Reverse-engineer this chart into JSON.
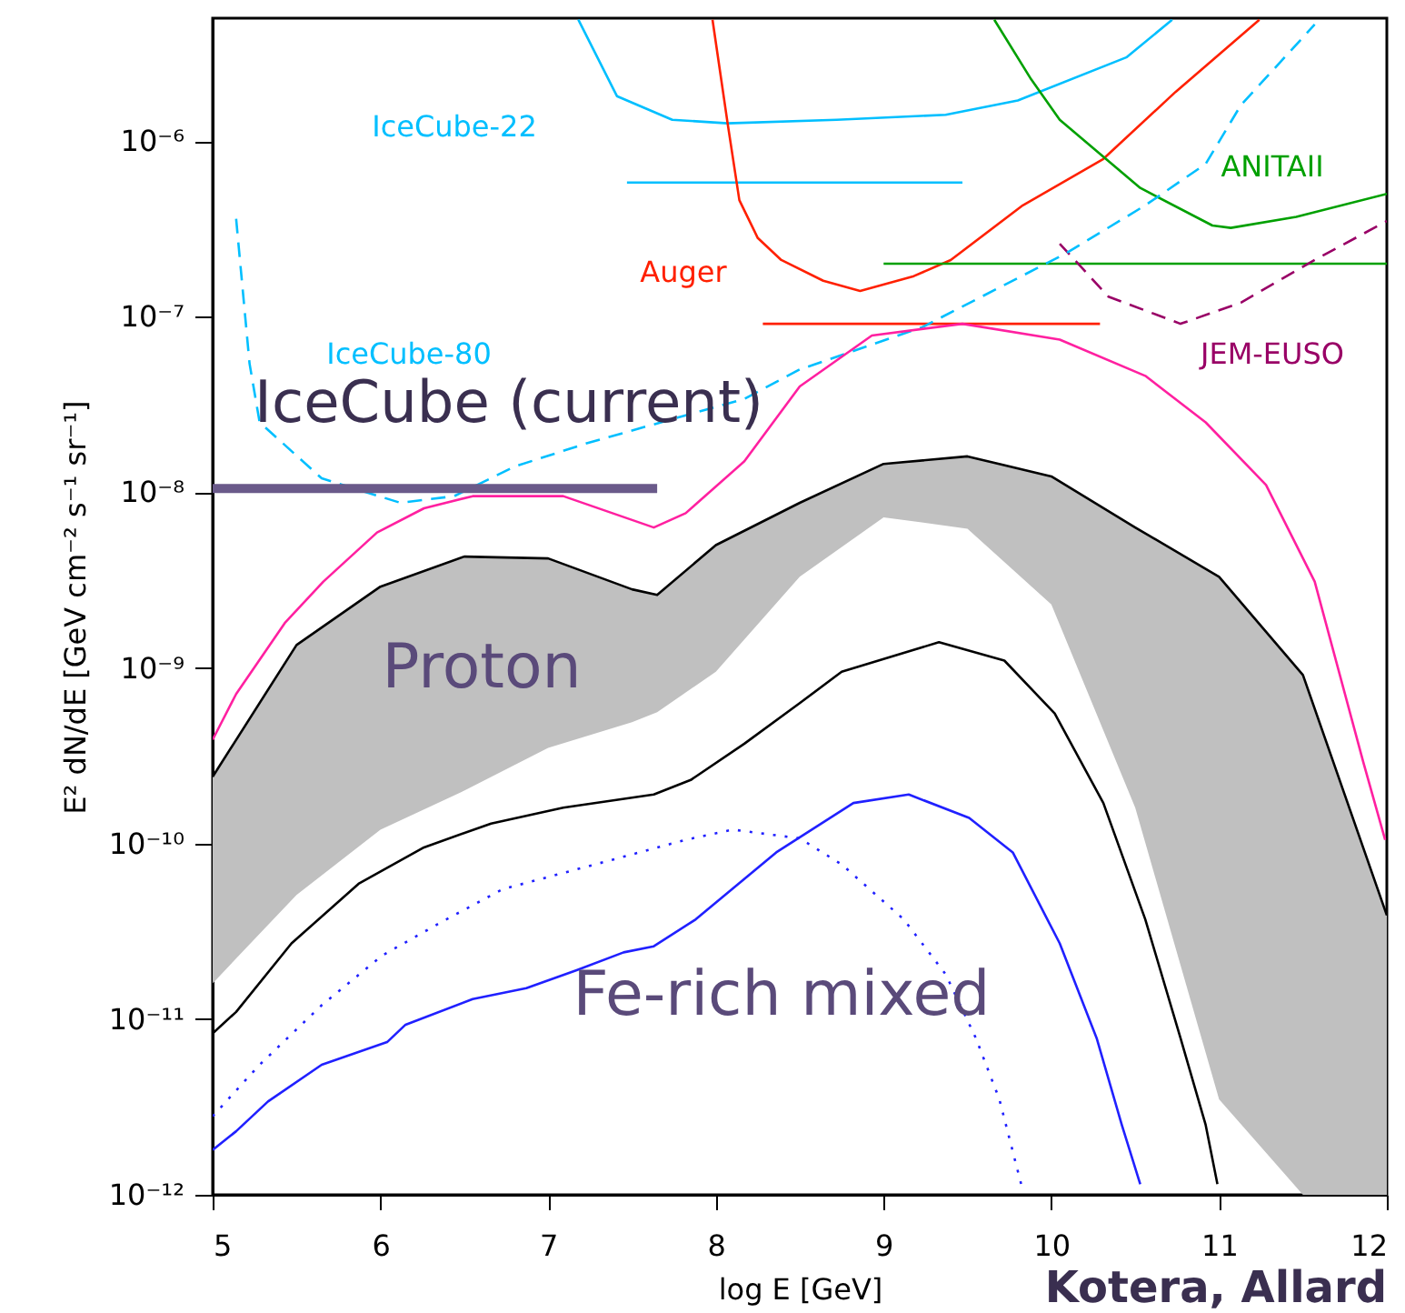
{
  "chart_data": {
    "type": "line",
    "xlabel": "log E [GeV]",
    "ylabel": "E² dN/dE [GeV cm⁻² s⁻¹ sr⁻¹]",
    "log": true,
    "grid": false,
    "xlim": [
      5,
      12
    ],
    "xticks": [
      5,
      6,
      7,
      8,
      9,
      10,
      11,
      12
    ],
    "ylim": [
      1e-12,
      5e-06
    ],
    "yticks": [
      {
        "value": 1e-12,
        "label": "10⁻¹²"
      },
      {
        "value": 1e-11,
        "label": "10⁻¹¹"
      },
      {
        "value": 1e-10,
        "label": "10⁻¹⁰"
      },
      {
        "value": 1e-09,
        "label": "10⁻⁹"
      },
      {
        "value": 1e-08,
        "label": "10⁻⁸"
      },
      {
        "value": 1e-07,
        "label": "10⁻⁷"
      },
      {
        "value": 1e-06,
        "label": "10⁻⁶"
      }
    ],
    "series": [
      {
        "color": "#000000",
        "x": [
          5.0,
          5.5,
          6.0,
          6.5,
          7.0,
          7.5,
          7.65,
          8.0,
          8.5,
          9.0,
          9.5,
          10.0,
          10.5,
          11.0,
          11.5,
          12.0
        ],
        "values": [
          2.4e-10,
          1.35e-09,
          2.9e-09,
          4.3e-09,
          4.2e-09,
          2.8e-09,
          2.6e-09,
          5e-09,
          8.7e-09,
          1.45e-08,
          1.6e-08,
          1.23e-08,
          6.3e-09,
          3.3e-09,
          9.1e-10,
          3.9e-11
        ],
        "upper": [
          2.4e-10,
          1.35e-09,
          2.9e-09,
          4.3e-09,
          4.2e-09,
          2.8e-09,
          2.6e-09,
          5e-09,
          8.7e-09,
          1.45e-08,
          1.6e-08,
          1.23e-08,
          6.3e-09,
          3.3e-09,
          9.1e-10,
          3.9e-11
        ],
        "lower": [
          1.6e-11,
          5.1e-11,
          1.2e-10,
          2e-10,
          3.5e-10,
          4.9e-10,
          5.6e-10,
          9.5e-10,
          3.3e-09,
          7.2e-09,
          6.2e-09,
          2.3e-09,
          1.6e-10,
          3.5e-12,
          1e-12,
          1e-12
        ]
      },
      {
        "name": "IceCube-22",
        "color": "#00bfff",
        "line_style": "solid",
        "x": [
          7.18,
          7.41,
          7.74,
          8.07,
          8.72,
          9.37,
          9.8,
          10.45,
          10.72
        ],
        "values": [
          4.9e-06,
          1.8e-06,
          1.32e-06,
          1.26e-06,
          1.32e-06,
          1.41e-06,
          1.7e-06,
          3e-06,
          4.9e-06
        ]
      },
      {
        "color": "#00bfff",
        "line_style": "solid",
        "x": [
          7.47,
          9.47
        ],
        "values": [
          5.8e-07,
          5.8e-07
        ]
      },
      {
        "name": "Auger",
        "color": "#ff2000",
        "line_style": "solid",
        "x": [
          7.98,
          8.07,
          8.14,
          8.25,
          8.39,
          8.64,
          8.86,
          9.18,
          9.4,
          9.83,
          10.31,
          10.74,
          11.24
        ],
        "values": [
          4.9e-06,
          1.26e-06,
          4.6e-07,
          2.8e-07,
          2.1e-07,
          1.6e-07,
          1.4e-07,
          1.7e-07,
          2.1e-07,
          4.3e-07,
          7.9e-07,
          1.9e-06,
          4.9e-06
        ]
      },
      {
        "color": "#ff2000",
        "line_style": "solid",
        "x": [
          8.28,
          10.29
        ],
        "values": [
          9.1e-08,
          9.1e-08
        ]
      },
      {
        "name": "ANITAII",
        "color": "#00a000",
        "line_style": "solid",
        "x": [
          9.66,
          9.88,
          10.05,
          10.53,
          10.96,
          11.07,
          11.46,
          12.0
        ],
        "values": [
          4.9e-06,
          2.24e-06,
          1.32e-06,
          5.4e-07,
          3.3e-07,
          3.2e-07,
          3.7e-07,
          5e-07
        ]
      },
      {
        "color": "#00a000",
        "line_style": "solid",
        "x": [
          9.0,
          12.0
        ],
        "values": [
          2e-07,
          2e-07
        ]
      },
      {
        "name": "JEM-EUSO",
        "color": "#990066",
        "line_style": "dashed",
        "x": [
          10.05,
          10.34,
          10.77,
          11.13,
          11.57,
          12.0
        ],
        "values": [
          2.6e-07,
          1.3e-07,
          9.1e-08,
          1.2e-07,
          2.1e-07,
          3.5e-07
        ]
      },
      {
        "name": "IceCube-80",
        "color": "#00bfff",
        "line_style": "dashed",
        "x": [
          5.14,
          5.22,
          5.28,
          5.65,
          6.12,
          6.44,
          6.8,
          7.23,
          8.17,
          8.5,
          9.23,
          10.09,
          10.56,
          10.92,
          11.13,
          11.57
        ],
        "values": [
          3.6e-07,
          5.4e-08,
          2.5e-08,
          1.2e-08,
          8.7e-09,
          9.5e-09,
          1.4e-08,
          1.9e-08,
          3.4e-08,
          5e-08,
          8.7e-08,
          2.3e-07,
          4.3e-07,
          7.4e-07,
          1.6e-06,
          4.6e-06
        ]
      },
      {
        "color": "#6a5a8a",
        "line_style": "solid",
        "x": [
          5.0,
          7.65
        ],
        "values": [
          1.05e-08,
          1.05e-08
        ]
      },
      {
        "color": "#ff20a0",
        "line_style": "solid",
        "x": [
          5.0,
          5.14,
          5.43,
          5.66,
          5.98,
          6.26,
          6.55,
          7.09,
          7.63,
          7.82,
          8.17,
          8.5,
          8.93,
          9.47,
          10.05,
          10.56,
          10.92,
          11.28,
          11.57,
          11.86,
          11.99
        ],
        "values": [
          3.9e-10,
          7.1e-10,
          1.8e-09,
          3.1e-09,
          5.9e-09,
          8.1e-09,
          9.5e-09,
          9.5e-09,
          6.3e-09,
          7.6e-09,
          1.5e-08,
          4e-08,
          7.8e-08,
          9.1e-08,
          7.4e-08,
          4.6e-08,
          2.5e-08,
          1.1e-08,
          3.1e-09,
          2.9e-10,
          1.05e-10
        ]
      },
      {
        "color": "#000000",
        "line_style": "solid",
        "x": [
          5.0,
          5.14,
          5.47,
          5.87,
          6.26,
          6.66,
          7.09,
          7.63,
          7.85,
          8.17,
          8.5,
          8.75,
          9.33,
          9.72,
          10.02,
          10.31,
          10.56,
          10.77,
          10.92,
          10.99
        ],
        "values": [
          8.3e-12,
          1.1e-11,
          2.7e-11,
          5.9e-11,
          9.5e-11,
          1.3e-10,
          1.6e-10,
          1.9e-10,
          2.3e-10,
          3.7e-10,
          6.3e-10,
          9.5e-10,
          1.4e-09,
          1.1e-09,
          5.5e-10,
          1.7e-10,
          3.7e-11,
          7.8e-12,
          2.5e-12,
          1.15e-12
        ]
      },
      {
        "color": "#2020ff",
        "line_style": "solid",
        "x": [
          5.0,
          5.14,
          5.33,
          5.65,
          6.04,
          6.15,
          6.55,
          6.87,
          7.17,
          7.45,
          7.63,
          7.88,
          8.36,
          8.82,
          9.15,
          9.51,
          9.77,
          10.05,
          10.27,
          10.42,
          10.53
        ],
        "values": [
          1.8e-12,
          2.3e-12,
          3.4e-12,
          5.5e-12,
          7.4e-12,
          9.3e-12,
          1.3e-11,
          1.5e-11,
          1.9e-11,
          2.4e-11,
          2.6e-11,
          3.7e-11,
          8.9e-11,
          1.7e-10,
          1.9e-10,
          1.4e-10,
          8.9e-11,
          2.7e-11,
          7.8e-12,
          2.5e-12,
          1.15e-12
        ]
      },
      {
        "color": "#2020ff",
        "line_style": "dotted",
        "x": [
          5.0,
          5.28,
          5.65,
          6.01,
          6.37,
          6.73,
          7.28,
          7.82,
          8.1,
          8.5,
          8.75,
          9.12,
          9.37,
          9.55,
          9.69,
          9.82
        ],
        "values": [
          2.8e-12,
          5.5e-12,
          1.2e-11,
          2.3e-11,
          3.6e-11,
          5.5e-11,
          7.6e-11,
          1.05e-10,
          1.2e-10,
          1.07e-10,
          7.6e-11,
          3.7e-11,
          1.8e-11,
          7.8e-12,
          3.5e-12,
          1.15e-12
        ]
      }
    ],
    "annotations": [
      "IceCube (current)",
      "Proton",
      "Fe-rich mixed",
      "Kotera, Allard"
    ]
  }
}
